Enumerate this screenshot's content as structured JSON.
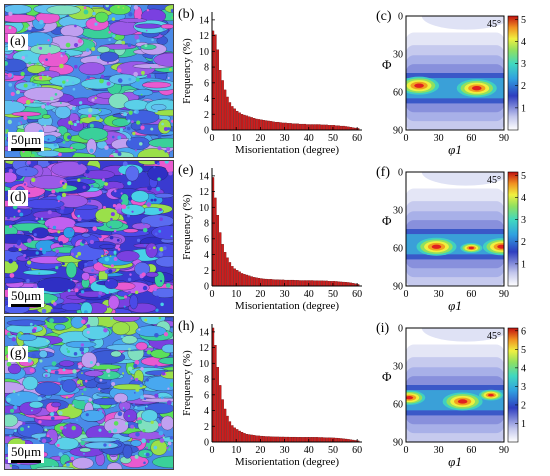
{
  "rows": [
    {
      "map_label": "(a)",
      "hist_label": "(b)",
      "odf_label": "(c)",
      "scale_text": "50μm",
      "colorbar_max": 5,
      "odf_angle": "45°",
      "hist_values": [
        12.6,
        12.1,
        10.2,
        7.6,
        6.3,
        5.1,
        4.2,
        3.5,
        3.0,
        2.7,
        2.4,
        2.2,
        2.0,
        1.9,
        1.8,
        1.7,
        1.6,
        1.5,
        1.4,
        1.35,
        1.3,
        1.25,
        1.2,
        1.15,
        1.1,
        1.05,
        1.0,
        1.0,
        0.95,
        0.9,
        0.9,
        0.85,
        0.85,
        0.8,
        0.8,
        0.8,
        0.75,
        0.75,
        0.75,
        0.7,
        0.7,
        0.7,
        0.7,
        0.7,
        0.7,
        0.65,
        0.65,
        0.65,
        0.6,
        0.6,
        0.6,
        0.55,
        0.55,
        0.5,
        0.5,
        0.45,
        0.4,
        0.35,
        0.3,
        0.25,
        0.2
      ],
      "odf_hotspots": [
        {
          "phi1": 12,
          "Phi": 55,
          "strength": 1.0
        },
        {
          "phi1": 65,
          "Phi": 57,
          "strength": 1.0
        }
      ]
    },
    {
      "map_label": "(d)",
      "hist_label": "(e)",
      "odf_label": "(f)",
      "scale_text": "50μm",
      "colorbar_max": 5,
      "odf_angle": "45°",
      "hist_values": [
        13.8,
        11.2,
        9.0,
        6.8,
        5.3,
        4.3,
        3.6,
        3.0,
        2.5,
        2.2,
        2.0,
        1.8,
        1.6,
        1.5,
        1.4,
        1.3,
        1.2,
        1.1,
        1.05,
        1.0,
        0.95,
        0.9,
        0.88,
        0.85,
        0.85,
        0.82,
        0.8,
        0.8,
        0.78,
        0.78,
        0.75,
        0.75,
        0.75,
        0.75,
        0.72,
        0.72,
        0.7,
        0.7,
        0.7,
        0.7,
        0.7,
        0.7,
        0.68,
        0.68,
        0.66,
        0.66,
        0.65,
        0.65,
        0.6,
        0.6,
        0.6,
        0.58,
        0.55,
        0.52,
        0.5,
        0.48,
        0.45,
        0.4,
        0.35,
        0.28,
        0.2
      ],
      "odf_hotspots": [
        {
          "phi1": 28,
          "Phi": 59,
          "strength": 1.0
        },
        {
          "phi1": 60,
          "Phi": 60,
          "strength": 0.55
        },
        {
          "phi1": 88,
          "Phi": 59,
          "strength": 0.95
        }
      ]
    },
    {
      "map_label": "(g)",
      "hist_label": "(h)",
      "odf_label": "(i)",
      "scale_text": "50μm",
      "colorbar_max": 6,
      "odf_angle": "45°",
      "hist_values": [
        14.5,
        12.3,
        9.5,
        7.2,
        5.4,
        4.2,
        3.3,
        2.6,
        2.1,
        1.8,
        1.6,
        1.4,
        1.25,
        1.1,
        1.0,
        0.95,
        0.9,
        0.85,
        0.8,
        0.78,
        0.75,
        0.72,
        0.7,
        0.7,
        0.68,
        0.66,
        0.65,
        0.65,
        0.64,
        0.64,
        0.63,
        0.63,
        0.62,
        0.62,
        0.62,
        0.61,
        0.61,
        0.6,
        0.6,
        0.6,
        0.6,
        0.6,
        0.6,
        0.6,
        0.58,
        0.58,
        0.56,
        0.55,
        0.55,
        0.53,
        0.52,
        0.5,
        0.48,
        0.45,
        0.42,
        0.38,
        0.34,
        0.3,
        0.25,
        0.2,
        0.15
      ],
      "odf_hotspots": [
        {
          "phi1": 3,
          "Phi": 55,
          "strength": 0.8
        },
        {
          "phi1": 52,
          "Phi": 58,
          "strength": 1.0
        },
        {
          "phi1": 78,
          "Phi": 53,
          "strength": 0.6
        }
      ]
    }
  ],
  "hist_axis": {
    "ylabel": "Frequency (%)",
    "xlabel": "Misorientation (degree)",
    "xticks": [
      "0",
      "10",
      "20",
      "30",
      "40",
      "50",
      "60"
    ],
    "yticks": [
      "0",
      "2",
      "4",
      "6",
      "8",
      "10",
      "12",
      "14"
    ]
  },
  "odf_axis": {
    "ylabel": "Φ",
    "xlabel": "φ1",
    "xticks": [
      "0",
      "30",
      "60",
      "90"
    ],
    "yticks": [
      "0",
      "30",
      "60",
      "90"
    ]
  },
  "colors": {
    "bar_fill": "#d01c1c",
    "bar_edge": "#5a0000"
  },
  "chart_data": [
    {
      "type": "bar",
      "title": "",
      "xlabel": "Misorientation (degree)",
      "ylabel": "Frequency (%)",
      "xlim": [
        0,
        62
      ],
      "ylim": [
        0,
        15
      ],
      "ref": "rows.0.hist_values"
    },
    {
      "type": "bar",
      "title": "",
      "xlabel": "Misorientation (degree)",
      "ylabel": "Frequency (%)",
      "xlim": [
        0,
        62
      ],
      "ylim": [
        0,
        15
      ],
      "ref": "rows.1.hist_values"
    },
    {
      "type": "bar",
      "title": "",
      "xlabel": "Misorientation (degree)",
      "ylabel": "Frequency (%)",
      "xlim": [
        0,
        62
      ],
      "ylim": [
        0,
        15
      ],
      "ref": "rows.2.hist_values"
    }
  ]
}
